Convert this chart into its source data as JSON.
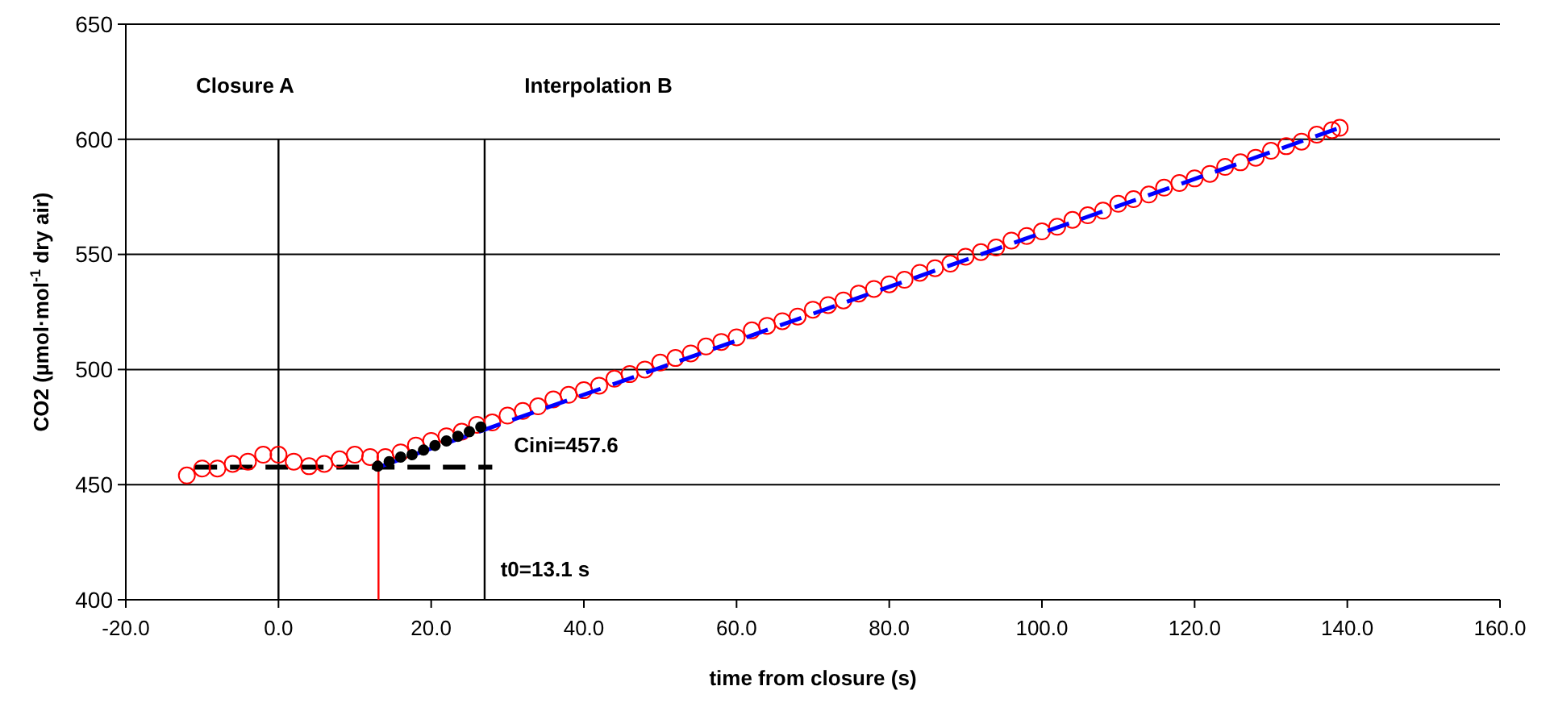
{
  "chart_data": {
    "type": "scatter",
    "xlabel": "time from closure (s)",
    "ylabel": "CO2 (µmol·mol$^{-1}$ dry air)",
    "xlim": [
      -20,
      160
    ],
    "xticks": [
      {
        "value": -20,
        "label": "-20.0"
      },
      {
        "value": 0,
        "label": "0.0"
      },
      {
        "value": 20,
        "label": "20.0"
      },
      {
        "value": 40,
        "label": "40.0"
      },
      {
        "value": 60,
        "label": "60.0"
      },
      {
        "value": 80,
        "label": "80.0"
      },
      {
        "value": 100,
        "label": "100.0"
      },
      {
        "value": 120,
        "label": "120.0"
      },
      {
        "value": 140,
        "label": "140.0"
      },
      {
        "value": 160,
        "label": "160.0"
      }
    ],
    "ylim": [
      400,
      650
    ],
    "yticks": [
      400,
      450,
      500,
      550,
      600,
      650
    ],
    "grid": "y",
    "series": [
      {
        "type": "line",
        "color": "#000000",
        "line_style": "solid",
        "x": [
          0,
          0
        ],
        "values": [
          400,
          600
        ]
      },
      {
        "type": "line",
        "color": "#000000",
        "line_style": "solid",
        "x": [
          27,
          27
        ],
        "values": [
          400,
          600
        ]
      },
      {
        "type": "line",
        "color": "#ff0000",
        "line_style": "solid",
        "x": [
          13.1,
          13.1
        ],
        "values": [
          400,
          457.6
        ]
      },
      {
        "type": "line",
        "color": "#000000",
        "line_style": "dashed",
        "x": [
          -11,
          28
        ],
        "values": [
          457.6,
          457.6
        ]
      },
      {
        "color": "#ff0000",
        "marker": "circle",
        "x": [
          -12,
          -10,
          -8,
          -6,
          -4,
          -2,
          0,
          2,
          4,
          6,
          8,
          10,
          12,
          14,
          16,
          18,
          20,
          22,
          24,
          26,
          28,
          30,
          32,
          34,
          36,
          38,
          40,
          42,
          44,
          46,
          48,
          50,
          52,
          54,
          56,
          58,
          60,
          62,
          64,
          66,
          68,
          70,
          72,
          74,
          76,
          78,
          80,
          82,
          84,
          86,
          88,
          90,
          92,
          94,
          96,
          98,
          100,
          102,
          104,
          106,
          108,
          110,
          112,
          114,
          116,
          118,
          120,
          122,
          124,
          126,
          128,
          130,
          132,
          134,
          136,
          138,
          139
        ],
        "values": [
          454,
          457,
          457,
          459,
          460,
          463,
          463,
          460,
          458,
          459,
          461,
          463,
          462,
          462,
          464,
          467,
          469,
          471,
          473,
          476,
          477,
          480,
          482,
          484,
          487,
          489,
          491,
          493,
          496,
          498,
          500,
          503,
          505,
          507,
          510,
          512,
          514,
          517,
          519,
          521,
          523,
          526,
          528,
          530,
          533,
          535,
          537,
          539,
          542,
          544,
          546,
          549,
          551,
          553,
          556,
          558,
          560,
          562,
          565,
          567,
          569,
          572,
          574,
          576,
          579,
          581,
          583,
          585,
          588,
          590,
          592,
          595,
          597,
          599,
          602,
          604,
          605
        ]
      },
      {
        "type": "line",
        "color": "#0000ff",
        "line_style": "dashed",
        "x": [
          13.1,
          139
        ],
        "values": [
          457.6,
          605
        ]
      },
      {
        "color": "#000000",
        "marker": "circle",
        "x": [
          13,
          14.5,
          16,
          17.5,
          19,
          20.5,
          22,
          23.5,
          25,
          26.5
        ],
        "values": [
          458,
          460,
          462,
          463,
          465,
          467,
          469,
          471,
          473,
          475
        ]
      }
    ],
    "annotations": [
      "Closure A",
      "Interpolation B",
      "Cini=457.6",
      "t0=13.1 s"
    ]
  }
}
